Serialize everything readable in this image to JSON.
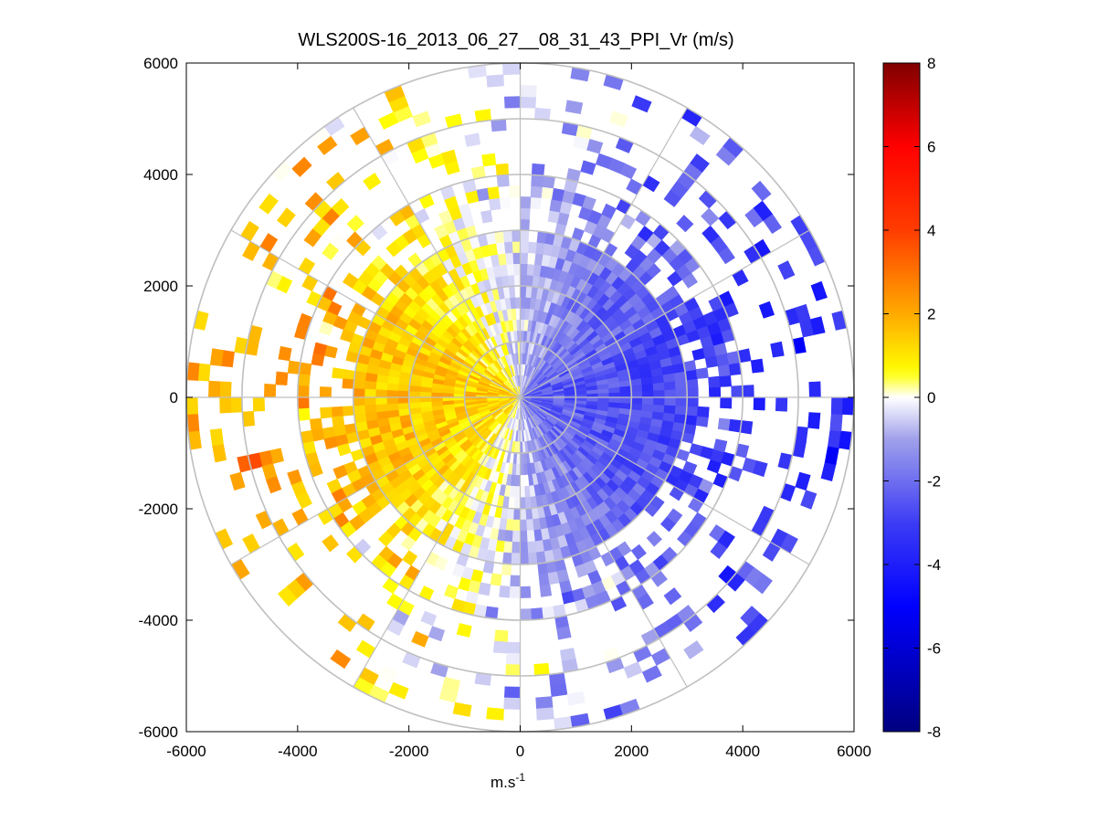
{
  "chart_data": {
    "type": "heatmap",
    "subtype": "polar PPI scan",
    "title": "WLS200S-16_2013_06_27__08_31_43_PPI_Vr (m/s)",
    "xlabel": "m.s",
    "xlabel_superscript": "-1",
    "ylabel": "",
    "xlim": [
      -6000,
      6000
    ],
    "ylim": [
      -6000,
      6000
    ],
    "xticks": [
      "-6000",
      "-4000",
      "-2000",
      "0",
      "2000",
      "4000",
      "6000"
    ],
    "yticks": [
      "6000",
      "4000",
      "2000",
      "0",
      "-2000",
      "-4000",
      "-6000"
    ],
    "colorbar": {
      "min": -8,
      "max": 8,
      "ticks": [
        "8",
        "6",
        "4",
        "2",
        "0",
        "-2",
        "-4",
        "-6",
        "-8"
      ],
      "colors": [
        "#000080",
        "#0000ff",
        "#ffffff",
        "#ffff00",
        "#ff8000",
        "#ff0000",
        "#800000"
      ]
    },
    "range_rings": [
      1000,
      2000,
      3000,
      4000,
      5000,
      6000
    ],
    "spokes_deg": [
      0,
      30,
      60,
      90,
      120,
      150,
      180,
      210,
      240,
      270,
      300,
      330
    ],
    "gate_spacing": 200,
    "sector_deg": 3,
    "pattern": {
      "description": "Radial velocity field: positive (away) on western half, negative (toward) on eastern half",
      "positive_peak_azimuth": 270,
      "negative_peak_azimuth": 90,
      "positive_max": 3.5,
      "negative_min": -5.5
    }
  }
}
